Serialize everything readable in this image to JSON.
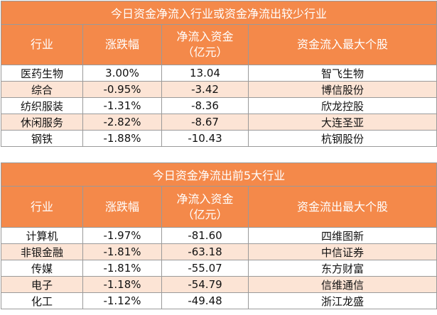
{
  "table1": {
    "title": "今日资金净流入行业或资金净流出较少行业",
    "headers": [
      "行业",
      "涨跌幅",
      "净流入资金\n（亿元）",
      "资金流入最大个股"
    ],
    "rows": [
      [
        "医药生物",
        "3.00%",
        "13.04",
        "智飞生物"
      ],
      [
        "综合",
        "-0.95%",
        "-3.42",
        "博信股份"
      ],
      [
        "纺织服装",
        "-1.31%",
        "-8.36",
        "欣龙控股"
      ],
      [
        "休闲服务",
        "-2.82%",
        "-8.67",
        "大连圣亚"
      ],
      [
        "钢铁",
        "-1.88%",
        "-10.43",
        "杭钢股份"
      ]
    ]
  },
  "table2": {
    "title": "今日资金净流出前5大行业",
    "headers": [
      "行业",
      "涨跌幅",
      "净流入资金\n（亿元）",
      "资金流出最大个股"
    ],
    "rows": [
      [
        "计算机",
        "-1.97%",
        "-81.60",
        "四维图新"
      ],
      [
        "非银金融",
        "-1.81%",
        "-63.18",
        "中信证券"
      ],
      [
        "传媒",
        "-1.81%",
        "-55.07",
        "东方财富"
      ],
      [
        "电子",
        "-1.18%",
        "-54.79",
        "信维通信"
      ],
      [
        "化工",
        "-1.12%",
        "-49.48",
        "浙江龙盛"
      ]
    ]
  },
  "colors": {
    "header_bg": "#f4894a",
    "header_text": "#ffffff",
    "stripe_bg": "#fce4d5",
    "border": "#9a9a9a"
  }
}
